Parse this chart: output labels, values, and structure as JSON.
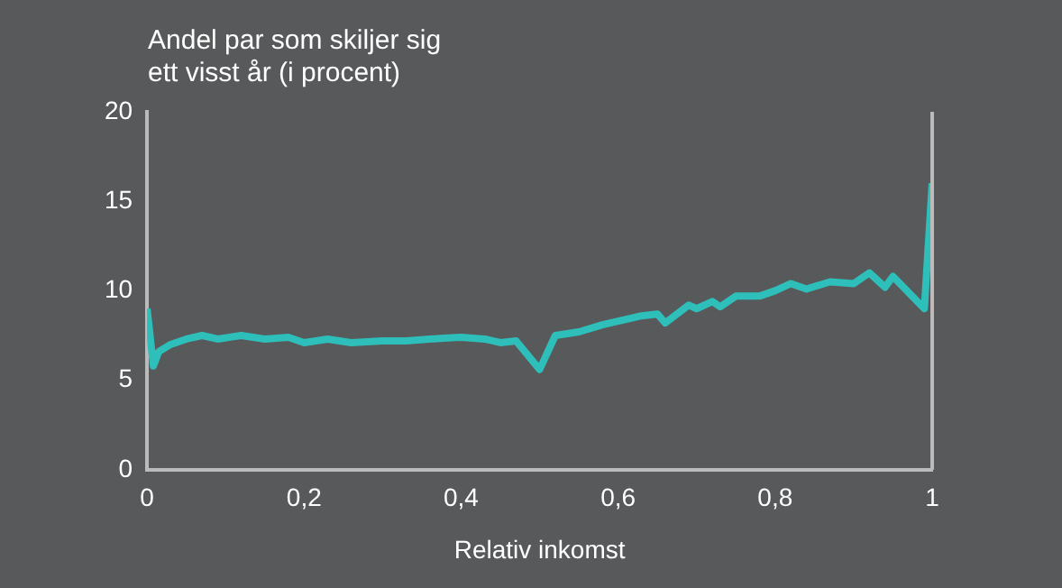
{
  "chart_data": {
    "type": "line",
    "title": "Andel par som skiljer sig\nett visst år (i procent)",
    "xlabel": "Relativ inkomst",
    "x": [
      0,
      0.008,
      0.015,
      0.03,
      0.05,
      0.07,
      0.09,
      0.12,
      0.15,
      0.18,
      0.2,
      0.23,
      0.26,
      0.3,
      0.33,
      0.36,
      0.4,
      0.43,
      0.45,
      0.47,
      0.5,
      0.52,
      0.55,
      0.58,
      0.6,
      0.63,
      0.65,
      0.66,
      0.69,
      0.7,
      0.72,
      0.73,
      0.75,
      0.78,
      0.8,
      0.82,
      0.84,
      0.87,
      0.9,
      0.92,
      0.94,
      0.95,
      0.99,
      1.0
    ],
    "series": [
      {
        "color": "#2ebfba",
        "values": [
          9,
          5.8,
          6.6,
          7.0,
          7.3,
          7.5,
          7.3,
          7.5,
          7.3,
          7.4,
          7.1,
          7.3,
          7.1,
          7.2,
          7.2,
          7.3,
          7.4,
          7.3,
          7.1,
          7.2,
          5.6,
          7.5,
          7.7,
          8.1,
          8.3,
          8.6,
          8.7,
          8.2,
          9.2,
          9.0,
          9.4,
          9.1,
          9.7,
          9.7,
          10.0,
          10.4,
          10.1,
          10.5,
          10.4,
          11.0,
          10.2,
          10.8,
          9.0,
          16.0
        ]
      }
    ],
    "xlim": [
      0,
      1
    ],
    "xticks": [
      0,
      {
        "value": 0.2,
        "label": "0,2"
      },
      {
        "value": 0.4,
        "label": "0,4"
      },
      {
        "value": 0.6,
        "label": "0,6"
      },
      {
        "value": 0.8,
        "label": "0,8"
      },
      1
    ],
    "ylim": [
      0,
      20
    ],
    "yticks": [
      0,
      5,
      10,
      15,
      20
    ],
    "grid": false,
    "legend": false,
    "marker": "none",
    "line_style": "solid"
  }
}
